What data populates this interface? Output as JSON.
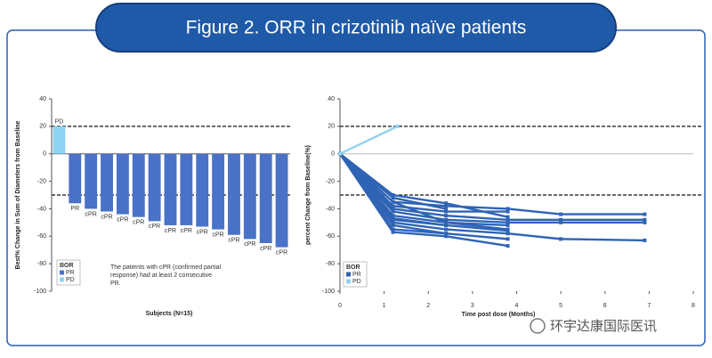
{
  "title": "Figure 2. ORR in crizotinib naïve patients",
  "watermark": "环宇达康国际医讯",
  "chart_data": [
    {
      "type": "bar",
      "y_label": "Best% Change in Sum of Diameters from Baseline",
      "x_label": "Subjects (N=15)",
      "categories": [
        "PD",
        "PR",
        "cPR",
        "cPR",
        "cPR",
        "cPR",
        "cPR",
        "cPR",
        "cPR",
        "cPR",
        "cPR",
        "cPR",
        "cPR",
        "cPR",
        "cPR"
      ],
      "series": [
        {
          "name": "PR",
          "color": "#4a72c6",
          "values": [
            null,
            -36,
            -40,
            -42,
            -44,
            -46,
            -49,
            -52,
            -52,
            -53,
            -55,
            -59,
            -62,
            -65,
            -68
          ]
        },
        {
          "name": "PD",
          "color": "#8fd3f2",
          "values": [
            20,
            null,
            null,
            null,
            null,
            null,
            null,
            null,
            null,
            null,
            null,
            null,
            null,
            null,
            null
          ]
        }
      ],
      "ylim": [
        -100,
        40
      ],
      "yticks": [
        -100,
        -80,
        -60,
        -40,
        -20,
        0,
        20,
        40
      ],
      "reference_lines": [
        20,
        -30
      ],
      "legend_title": "BOR",
      "legend": "lower left",
      "annotation": [
        "The patients with cPR (confirmed partial",
        "response) had at least 2 consecutive",
        "PR."
      ]
    },
    {
      "type": "line",
      "y_label": "percent Change from Baseline(%)",
      "x_label": "Time post dose (Months)",
      "series": [
        {
          "name": "PR",
          "color": "#2f64b5",
          "lines": [
            {
              "x": [
                0,
                1.2,
                2.4,
                3.8,
                5,
                6.9
              ],
              "values": [
                0,
                -35,
                -38,
                -40,
                -44,
                -44
              ]
            },
            {
              "x": [
                0,
                1.2,
                2.4,
                3.8,
                5,
                6.9
              ],
              "values": [
                0,
                -40,
                -45,
                -48,
                -48,
                -48
              ]
            },
            {
              "x": [
                0,
                1.2,
                2.4,
                3.8,
                5,
                6.9
              ],
              "values": [
                0,
                -50,
                -55,
                -58,
                -62,
                -63
              ]
            },
            {
              "x": [
                0,
                1.2,
                2.4,
                3.8,
                5,
                6.9
              ],
              "values": [
                0,
                -42,
                -48,
                -50,
                -50,
                -50
              ]
            },
            {
              "x": [
                0,
                1.2,
                2.4,
                3.8
              ],
              "values": [
                0,
                -55,
                -58,
                -62
              ]
            },
            {
              "x": [
                0,
                1.2,
                2.4,
                3.8
              ],
              "values": [
                0,
                -57,
                -60,
                -67
              ]
            },
            {
              "x": [
                0,
                1.2,
                2.4,
                3.8
              ],
              "values": [
                0,
                -45,
                -50,
                -52
              ]
            },
            {
              "x": [
                0,
                1.2,
                2.4,
                3.8
              ],
              "values": [
                0,
                -48,
                -52,
                -56
              ]
            },
            {
              "x": [
                0,
                1.2,
                2.4,
                3.8
              ],
              "values": [
                0,
                -38,
                -42,
                -42
              ]
            },
            {
              "x": [
                0,
                1.2,
                2.4,
                3.8
              ],
              "values": [
                0,
                -30,
                -36,
                -46
              ]
            },
            {
              "x": [
                0,
                1.2,
                2.4
              ],
              "values": [
                0,
                -47,
                -52
              ]
            },
            {
              "x": [
                0,
                1.2,
                2.4
              ],
              "values": [
                0,
                -52,
                -58
              ]
            },
            {
              "x": [
                0,
                1.2,
                2.4,
                3.8
              ],
              "values": [
                0,
                -35,
                -50,
                -55
              ]
            },
            {
              "x": [
                0,
                1.2,
                2.4
              ],
              "values": [
                0,
                -32,
                -40
              ]
            }
          ]
        },
        {
          "name": "PD",
          "color": "#8fd3f2",
          "lines": [
            {
              "x": [
                0,
                1.3
              ],
              "values": [
                0,
                20
              ]
            }
          ]
        }
      ],
      "xlim": [
        0,
        8
      ],
      "xticks": [
        0,
        1,
        2,
        3,
        4,
        5,
        6,
        7,
        8
      ],
      "ylim": [
        -100,
        40
      ],
      "yticks": [
        -100,
        -80,
        -60,
        -40,
        -20,
        0,
        20,
        40
      ],
      "reference_lines": [
        20,
        -30
      ],
      "legend_title": "BOR",
      "legend": "lower left"
    }
  ]
}
